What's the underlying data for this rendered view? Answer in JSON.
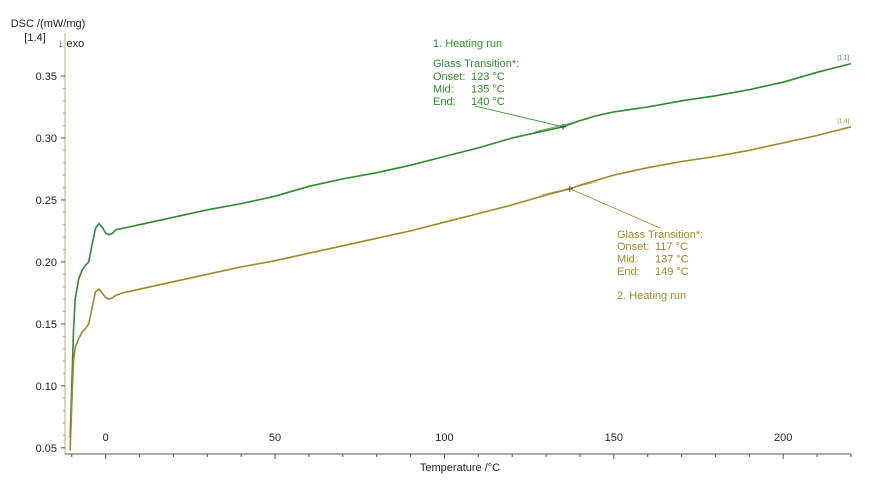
{
  "chart_data": {
    "type": "line",
    "ylabel": "DSC /(mW/mg)",
    "ylabel_prefix": "[1.4]",
    "exo_marker": "↓ exo",
    "xlabel": "Temperature /°C",
    "xlim": [
      -12,
      220
    ],
    "ylim": [
      0.045,
      0.375
    ],
    "x_ticks": [
      0,
      50,
      100,
      150,
      200
    ],
    "y_ticks": [
      0.05,
      0.1,
      0.15,
      0.2,
      0.25,
      0.3,
      0.35
    ],
    "y_tick_labels": [
      "0.05",
      "0.10",
      "0.15",
      "0.20",
      "0.25",
      "0.30",
      "0.35"
    ],
    "grid": false,
    "series": [
      {
        "name": "1. Heating run",
        "tag": "[1.1]",
        "color": "#2e8b2e",
        "points": [
          [
            -10.5,
            0.058
          ],
          [
            -10,
            0.1
          ],
          [
            -9.5,
            0.145
          ],
          [
            -9,
            0.17
          ],
          [
            -8,
            0.186
          ],
          [
            -7,
            0.193
          ],
          [
            -6,
            0.197
          ],
          [
            -5,
            0.2
          ],
          [
            -4,
            0.214
          ],
          [
            -3,
            0.227
          ],
          [
            -2,
            0.231
          ],
          [
            -1,
            0.228
          ],
          [
            0,
            0.223
          ],
          [
            1,
            0.222
          ],
          [
            2,
            0.223
          ],
          [
            3,
            0.226
          ],
          [
            5,
            0.227
          ],
          [
            10,
            0.23
          ],
          [
            20,
            0.236
          ],
          [
            30,
            0.242
          ],
          [
            40,
            0.247
          ],
          [
            50,
            0.253
          ],
          [
            60,
            0.261
          ],
          [
            70,
            0.267
          ],
          [
            80,
            0.272
          ],
          [
            90,
            0.278
          ],
          [
            100,
            0.285
          ],
          [
            110,
            0.292
          ],
          [
            120,
            0.3
          ],
          [
            125,
            0.303
          ],
          [
            130,
            0.306
          ],
          [
            135,
            0.309
          ],
          [
            140,
            0.314
          ],
          [
            145,
            0.318
          ],
          [
            150,
            0.321
          ],
          [
            160,
            0.325
          ],
          [
            170,
            0.33
          ],
          [
            180,
            0.334
          ],
          [
            190,
            0.339
          ],
          [
            200,
            0.345
          ],
          [
            210,
            0.353
          ],
          [
            220,
            0.36
          ]
        ],
        "glass_transition": {
          "title": "Glass Transition*:",
          "marker": {
            "x": 135,
            "y": 0.309
          },
          "rows": [
            {
              "label": "Onset:",
              "value": "123 °C"
            },
            {
              "label": "Mid:",
              "value": "135 °C"
            },
            {
              "label": "End:",
              "value": "140 °C"
            }
          ]
        }
      },
      {
        "name": "2. Heating run",
        "tag": "[1.4]",
        "color": "#9a8a28",
        "points": [
          [
            -10.5,
            0.048
          ],
          [
            -10,
            0.085
          ],
          [
            -9.5,
            0.12
          ],
          [
            -9,
            0.131
          ],
          [
            -8,
            0.138
          ],
          [
            -7,
            0.143
          ],
          [
            -6,
            0.146
          ],
          [
            -5,
            0.15
          ],
          [
            -4,
            0.163
          ],
          [
            -3,
            0.176
          ],
          [
            -2,
            0.178
          ],
          [
            -1,
            0.175
          ],
          [
            0,
            0.171
          ],
          [
            1,
            0.17
          ],
          [
            2,
            0.171
          ],
          [
            3,
            0.173
          ],
          [
            5,
            0.175
          ],
          [
            10,
            0.178
          ],
          [
            20,
            0.184
          ],
          [
            30,
            0.19
          ],
          [
            40,
            0.196
          ],
          [
            50,
            0.201
          ],
          [
            60,
            0.207
          ],
          [
            70,
            0.213
          ],
          [
            80,
            0.219
          ],
          [
            90,
            0.225
          ],
          [
            100,
            0.232
          ],
          [
            110,
            0.239
          ],
          [
            120,
            0.246
          ],
          [
            130,
            0.254
          ],
          [
            137,
            0.259
          ],
          [
            140,
            0.262
          ],
          [
            150,
            0.27
          ],
          [
            160,
            0.276
          ],
          [
            170,
            0.281
          ],
          [
            180,
            0.285
          ],
          [
            190,
            0.29
          ],
          [
            200,
            0.296
          ],
          [
            210,
            0.302
          ],
          [
            220,
            0.309
          ]
        ],
        "glass_transition": {
          "title": "Glass Transition*:",
          "marker": {
            "x": 137,
            "y": 0.259
          },
          "rows": [
            {
              "label": "Onset:",
              "value": "117 °C"
            },
            {
              "label": "Mid:",
              "value": "137 °C"
            },
            {
              "label": "End:",
              "value": "149 °C"
            }
          ]
        }
      }
    ]
  }
}
